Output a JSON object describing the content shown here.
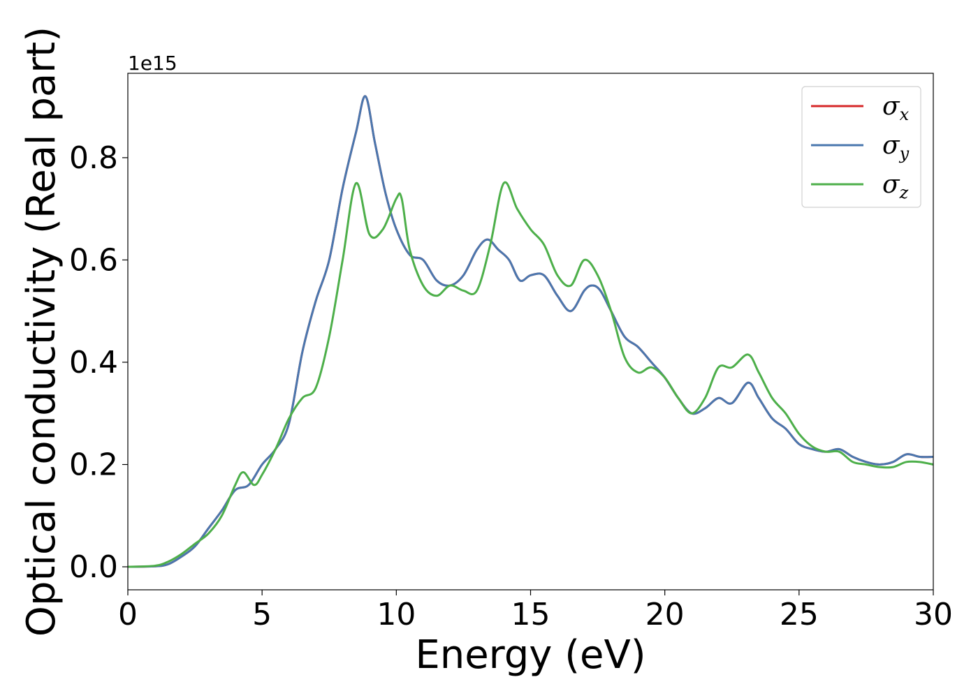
{
  "chart_data": {
    "type": "line",
    "xlabel": "Energy (eV)",
    "ylabel": "Optical conductivity (Real part)",
    "y_offset_label": "1e15",
    "y_scale": 1000000000000000.0,
    "xlim": [
      0,
      30
    ],
    "ylim": [
      -0.045,
      0.965
    ],
    "xticks": [
      0,
      5,
      10,
      15,
      20,
      25,
      30
    ],
    "xtick_labels": [
      "0",
      "5",
      "10",
      "15",
      "20",
      "25",
      "30"
    ],
    "yticks": [
      0.0,
      0.2,
      0.4,
      0.6,
      0.8
    ],
    "ytick_labels": [
      "0.0",
      "0.2",
      "0.4",
      "0.6",
      "0.8"
    ],
    "grid": false,
    "legend_position": "top-right",
    "series": [
      {
        "name": "σ_x",
        "symbol": "σ",
        "subscript": "x",
        "color": "#d62728",
        "x": [
          0,
          1,
          1.5,
          2,
          2.5,
          3,
          3.5,
          4,
          4.5,
          5,
          5.5,
          6,
          6.5,
          7,
          7.5,
          8,
          8.5,
          8.85,
          9.2,
          9.6,
          10,
          10.5,
          11,
          11.5,
          12,
          12.5,
          13,
          13.4,
          13.8,
          14.2,
          14.6,
          15,
          15.5,
          16,
          16.5,
          17,
          17.3,
          17.6,
          18,
          18.5,
          19,
          19.5,
          20,
          20.5,
          21,
          21.5,
          22,
          22.5,
          23.1,
          23.5,
          24,
          24.5,
          25,
          25.5,
          26,
          26.5,
          27,
          27.5,
          28,
          28.5,
          29,
          29.5,
          30
        ],
        "y": [
          0.0,
          0.001,
          0.005,
          0.02,
          0.04,
          0.075,
          0.11,
          0.15,
          0.16,
          0.2,
          0.23,
          0.28,
          0.42,
          0.52,
          0.6,
          0.74,
          0.85,
          0.92,
          0.83,
          0.73,
          0.66,
          0.61,
          0.6,
          0.56,
          0.55,
          0.57,
          0.62,
          0.64,
          0.62,
          0.6,
          0.56,
          0.57,
          0.57,
          0.53,
          0.5,
          0.54,
          0.55,
          0.54,
          0.5,
          0.45,
          0.43,
          0.4,
          0.37,
          0.33,
          0.3,
          0.31,
          0.33,
          0.32,
          0.36,
          0.33,
          0.29,
          0.27,
          0.24,
          0.23,
          0.225,
          0.23,
          0.215,
          0.205,
          0.2,
          0.205,
          0.22,
          0.215,
          0.215
        ]
      },
      {
        "name": "σ_y",
        "symbol": "σ",
        "subscript": "y",
        "color": "#4a77ae",
        "x": [
          0,
          1,
          1.5,
          2,
          2.5,
          3,
          3.5,
          4,
          4.5,
          5,
          5.5,
          6,
          6.5,
          7,
          7.5,
          8,
          8.5,
          8.85,
          9.2,
          9.6,
          10,
          10.5,
          11,
          11.5,
          12,
          12.5,
          13,
          13.4,
          13.8,
          14.2,
          14.6,
          15,
          15.5,
          16,
          16.5,
          17,
          17.3,
          17.6,
          18,
          18.5,
          19,
          19.5,
          20,
          20.5,
          21,
          21.5,
          22,
          22.5,
          23.1,
          23.5,
          24,
          24.5,
          25,
          25.5,
          26,
          26.5,
          27,
          27.5,
          28,
          28.5,
          29,
          29.5,
          30
        ],
        "y": [
          0.0,
          0.001,
          0.005,
          0.02,
          0.04,
          0.075,
          0.11,
          0.15,
          0.16,
          0.2,
          0.23,
          0.28,
          0.42,
          0.52,
          0.6,
          0.74,
          0.85,
          0.92,
          0.83,
          0.73,
          0.66,
          0.61,
          0.6,
          0.56,
          0.55,
          0.57,
          0.62,
          0.64,
          0.62,
          0.6,
          0.56,
          0.57,
          0.57,
          0.53,
          0.5,
          0.54,
          0.55,
          0.54,
          0.5,
          0.45,
          0.43,
          0.4,
          0.37,
          0.33,
          0.3,
          0.31,
          0.33,
          0.32,
          0.36,
          0.33,
          0.29,
          0.27,
          0.24,
          0.23,
          0.225,
          0.23,
          0.215,
          0.205,
          0.2,
          0.205,
          0.22,
          0.215,
          0.215
        ]
      },
      {
        "name": "σ_z",
        "symbol": "σ",
        "subscript": "z",
        "color": "#4daf4a",
        "x": [
          0,
          1,
          1.5,
          2,
          2.5,
          3,
          3.5,
          4,
          4.3,
          4.7,
          5,
          5.5,
          6,
          6.5,
          7,
          7.5,
          8,
          8.5,
          9,
          9.5,
          10,
          10.2,
          10.5,
          11,
          11.5,
          12,
          12.5,
          13,
          13.5,
          14,
          14.5,
          15,
          15.5,
          16,
          16.5,
          17,
          17.5,
          18,
          18.5,
          19,
          19.5,
          20,
          20.5,
          21,
          21.5,
          22,
          22.5,
          23.1,
          23.5,
          24,
          24.5,
          25,
          25.5,
          26,
          26.5,
          27,
          27.5,
          28,
          28.5,
          29,
          29.5,
          30
        ],
        "y": [
          0.0,
          0.002,
          0.01,
          0.025,
          0.045,
          0.065,
          0.1,
          0.16,
          0.185,
          0.16,
          0.18,
          0.23,
          0.29,
          0.33,
          0.35,
          0.45,
          0.6,
          0.75,
          0.65,
          0.66,
          0.72,
          0.72,
          0.62,
          0.55,
          0.53,
          0.55,
          0.54,
          0.54,
          0.63,
          0.75,
          0.7,
          0.66,
          0.63,
          0.57,
          0.55,
          0.6,
          0.57,
          0.5,
          0.41,
          0.38,
          0.39,
          0.37,
          0.33,
          0.3,
          0.33,
          0.39,
          0.39,
          0.415,
          0.38,
          0.33,
          0.3,
          0.26,
          0.235,
          0.225,
          0.225,
          0.205,
          0.2,
          0.195,
          0.195,
          0.205,
          0.205,
          0.2
        ]
      }
    ]
  }
}
